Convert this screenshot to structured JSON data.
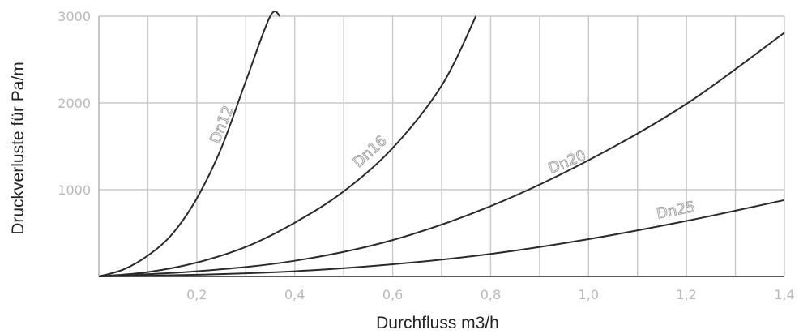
{
  "chart_data": {
    "type": "line",
    "title": "",
    "xlabel": "Durchfluss m3/h",
    "ylabel": "Druckverluste für Pa/m",
    "xlim": [
      0,
      1.4
    ],
    "ylim": [
      0,
      3000
    ],
    "x_ticks": [
      0.2,
      0.4,
      0.6,
      0.8,
      1.0,
      1.2,
      1.4
    ],
    "x_tick_labels": [
      "0,2",
      "0,4",
      "0,6",
      "0,8",
      "1,0",
      "1,2",
      "1,4"
    ],
    "x_gridlines": [
      0.1,
      0.2,
      0.3,
      0.4,
      0.5,
      0.6,
      0.7,
      0.8,
      0.9,
      1.0,
      1.1,
      1.2,
      1.3,
      1.4
    ],
    "y_ticks": [
      1000,
      2000,
      3000
    ],
    "y_tick_labels": [
      "1000",
      "2000",
      "3000"
    ],
    "grid": true,
    "legend": "none",
    "series": [
      {
        "name": "Dn12",
        "x": [
          0,
          0.05,
          0.1,
          0.15,
          0.2,
          0.25,
          0.3,
          0.35,
          0.37
        ],
        "y": [
          0,
          80,
          240,
          490,
          900,
          1480,
          2250,
          3000,
          3000
        ]
      },
      {
        "name": "Dn16",
        "x": [
          0,
          0.1,
          0.2,
          0.3,
          0.4,
          0.5,
          0.6,
          0.7,
          0.77
        ],
        "y": [
          0,
          50,
          160,
          340,
          620,
          980,
          1480,
          2200,
          3000
        ]
      },
      {
        "name": "Dn20",
        "x": [
          0,
          0.2,
          0.4,
          0.6,
          0.8,
          1.0,
          1.2,
          1.4
        ],
        "y": [
          0,
          60,
          180,
          420,
          810,
          1340,
          1990,
          2810
        ]
      },
      {
        "name": "Dn25",
        "x": [
          0,
          0.2,
          0.4,
          0.6,
          0.8,
          1.0,
          1.2,
          1.4
        ],
        "y": [
          0,
          20,
          60,
          140,
          260,
          430,
          640,
          880
        ]
      }
    ]
  }
}
